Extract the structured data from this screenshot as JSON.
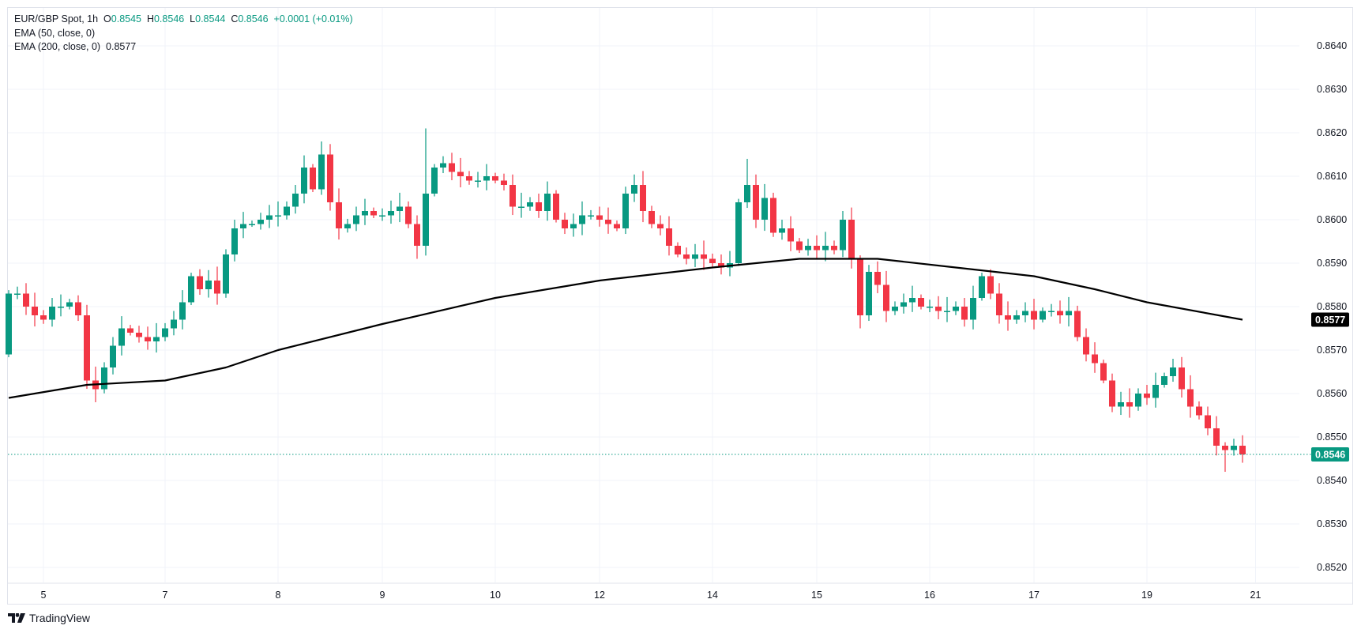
{
  "legend": {
    "symbol": "EUR/GBP Spot, 1h",
    "open_label": "O",
    "open": "0.8545",
    "high_label": "H",
    "high": "0.8546",
    "low_label": "L",
    "low": "0.8544",
    "close_label": "C",
    "close": "0.8546",
    "change": "+0.0001 (+0.01%)",
    "ema50": "EMA (50, close, 0)",
    "ema200": "EMA (200, close, 0)",
    "ema200_value": "0.8577"
  },
  "branding": {
    "name": "TradingView"
  },
  "colors": {
    "up": "#089981",
    "down": "#F23645",
    "ema": "#000000",
    "grid": "#f0f3fa"
  },
  "chart_data": {
    "type": "candlestick",
    "title": "EUR/GBP Spot, 1h",
    "ylim": [
      0.8515,
      0.8645
    ],
    "y_ticks": [
      "0.8640",
      "0.8630",
      "0.8620",
      "0.8610",
      "0.8600",
      "0.8590",
      "0.8580",
      "0.8570",
      "0.8560",
      "0.8550",
      "0.8540",
      "0.8530",
      "0.8520"
    ],
    "x_ticks": [
      {
        "label": "5",
        "bar": 4
      },
      {
        "label": "7",
        "bar": 18
      },
      {
        "label": "8",
        "bar": 31
      },
      {
        "label": "9",
        "bar": 43
      },
      {
        "label": "10",
        "bar": 56
      },
      {
        "label": "12",
        "bar": 68
      },
      {
        "label": "14",
        "bar": 81
      },
      {
        "label": "15",
        "bar": 93
      },
      {
        "label": "16",
        "bar": 106
      },
      {
        "label": "17",
        "bar": 118
      },
      {
        "label": "19",
        "bar": 131
      },
      {
        "label": "21",
        "bar": 143.5
      }
    ],
    "first_open": 0.8569,
    "close": [
      0.8583,
      0.8583,
      0.858,
      0.8578,
      0.8577,
      0.858,
      0.858,
      0.8581,
      0.8578,
      0.8563,
      0.8561,
      0.8566,
      0.8571,
      0.8575,
      0.8574,
      0.8573,
      0.8572,
      0.8573,
      0.8575,
      0.8577,
      0.8581,
      0.8587,
      0.8584,
      0.8586,
      0.8583,
      0.8592,
      0.8598,
      0.8599,
      0.8599,
      0.86,
      0.8601,
      0.8601,
      0.8603,
      0.8606,
      0.8612,
      0.8607,
      0.8615,
      0.8604,
      0.8598,
      0.8599,
      0.8601,
      0.8602,
      0.8601,
      0.8601,
      0.8602,
      0.8603,
      0.8599,
      0.8594,
      0.8606,
      0.8612,
      0.8613,
      0.8611,
      0.861,
      0.8609,
      0.8609,
      0.861,
      0.8609,
      0.8608,
      0.8603,
      0.8603,
      0.8604,
      0.8602,
      0.8606,
      0.86,
      0.8598,
      0.8599,
      0.8601,
      0.8601,
      0.86,
      0.8599,
      0.8598,
      0.8606,
      0.8608,
      0.8602,
      0.8599,
      0.8598,
      0.8594,
      0.8592,
      0.8591,
      0.8592,
      0.8591,
      0.859,
      0.8589,
      0.859,
      0.8604,
      0.8608,
      0.86,
      0.8605,
      0.8597,
      0.8598,
      0.8595,
      0.8593,
      0.8594,
      0.8593,
      0.8594,
      0.8593,
      0.86,
      0.8591,
      0.8578,
      0.8588,
      0.8585,
      0.8579,
      0.858,
      0.8581,
      0.8582,
      0.858,
      0.858,
      0.8579,
      0.8579,
      0.858,
      0.8577,
      0.8582,
      0.8587,
      0.8583,
      0.8578,
      0.8577,
      0.8578,
      0.8579,
      0.8577,
      0.8579,
      0.8579,
      0.8578,
      0.8579,
      0.8573,
      0.8569,
      0.8567,
      0.8563,
      0.8557,
      0.8558,
      0.8557,
      0.856,
      0.8559,
      0.8562,
      0.8564,
      0.8566,
      0.8561,
      0.8557,
      0.8555,
      0.8552,
      0.8548,
      0.8547,
      0.8548,
      0.8546
    ],
    "extremes": [
      {
        "bar": 10,
        "low": 0.8558
      },
      {
        "bar": 36,
        "high": 0.8618
      },
      {
        "bar": 47,
        "low": 0.8591
      },
      {
        "bar": 48,
        "high": 0.8621
      },
      {
        "bar": 83,
        "low": 0.8587
      },
      {
        "bar": 85,
        "high": 0.8614
      },
      {
        "bar": 98,
        "low": 0.8575
      },
      {
        "bar": 134,
        "high": 0.8568
      },
      {
        "bar": 140,
        "low": 0.8542
      }
    ],
    "ema200": [
      {
        "bar": 0,
        "value": 0.8559
      },
      {
        "bar": 9,
        "value": 0.8562
      },
      {
        "bar": 18,
        "value": 0.8563
      },
      {
        "bar": 25,
        "value": 0.8566
      },
      {
        "bar": 31,
        "value": 0.857
      },
      {
        "bar": 43,
        "value": 0.8576
      },
      {
        "bar": 56,
        "value": 0.8582
      },
      {
        "bar": 68,
        "value": 0.8586
      },
      {
        "bar": 81,
        "value": 0.8589
      },
      {
        "bar": 91,
        "value": 0.8591
      },
      {
        "bar": 100,
        "value": 0.8591
      },
      {
        "bar": 109,
        "value": 0.8589
      },
      {
        "bar": 118,
        "value": 0.8587
      },
      {
        "bar": 125,
        "value": 0.8584
      },
      {
        "bar": 131,
        "value": 0.8581
      },
      {
        "bar": 142,
        "value": 0.8577
      }
    ],
    "last_price": "0.8546",
    "ema200_last": "0.8577"
  }
}
